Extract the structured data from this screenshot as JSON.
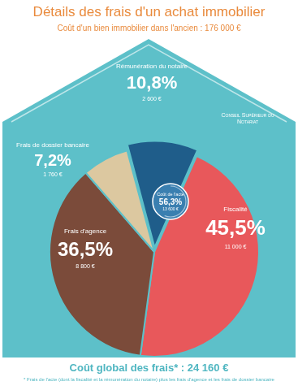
{
  "chart_data": {
    "type": "pie",
    "title": "Détails des frais d'un achat immobilier",
    "subtitle": "Coût d'un bien immobilier dans l'ancien : 176 000 €",
    "categories": [
      "Rémunération du notaire",
      "Fiscalité",
      "Frais d'agence",
      "Frais de dossier bancaire"
    ],
    "values": [
      10.8,
      45.5,
      36.5,
      7.2
    ],
    "value_labels": [
      "10,8%",
      "45,5%",
      "36,5%",
      "7,2%"
    ],
    "amount_labels": [
      "2 600 €",
      "11 000 €",
      "8 800 €",
      "1 760 €"
    ],
    "colors": [
      "#1f5d8a",
      "#e8585b",
      "#7b4b3a",
      "#dcc8a0"
    ],
    "data_labels": true,
    "acte": {
      "label": "Coût de l'acte",
      "value": 56.3,
      "value_label": "56,3%",
      "amount_label": "13 600 €"
    },
    "logo_text": "Conseil Supérieur du Notariat",
    "total": "Coût global des frais* : 24 160 €",
    "footnote": "* Frais de l'acte (dont la fiscalité et la rémunération du notaire) plus les frais d'agence et les frais de dossier bancaire"
  }
}
